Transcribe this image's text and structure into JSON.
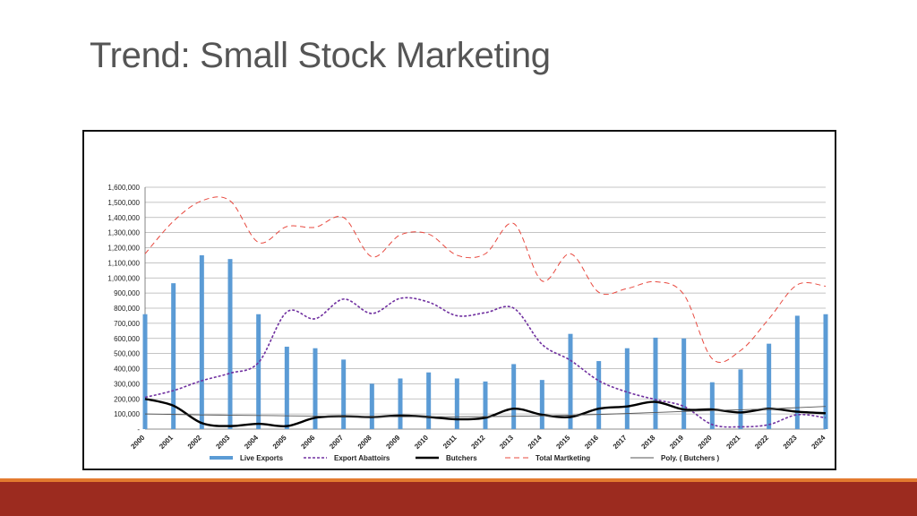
{
  "slide": {
    "title": "Trend: Small Stock Marketing"
  },
  "colors": {
    "footer": "#9c2b1f",
    "accent": "#e37a2f"
  },
  "chart_data": {
    "type": "bar",
    "categories": [
      "2000",
      "2001",
      "2002",
      "2003",
      "2004",
      "2005",
      "2006",
      "2007",
      "2008",
      "2009",
      "2010",
      "2011",
      "2012",
      "2013",
      "2014",
      "2015",
      "2016",
      "2017",
      "2018",
      "2019",
      "2020",
      "2021",
      "2022",
      "2023",
      "2024"
    ],
    "ylim": [
      0,
      1600000
    ],
    "yticks": [
      "-",
      "100,000",
      "200,000",
      "300,000",
      "400,000",
      "500,000",
      "600,000",
      "700,000",
      "800,000",
      "900,000",
      "1,000,000",
      "1,100,000",
      "1,200,000",
      "1,300,000",
      "1,400,000",
      "1,500,000",
      "1,600,000"
    ],
    "grid": true,
    "legend_position": "bottom",
    "series": [
      {
        "name": "Live Exports",
        "kind": "bar",
        "color": "#5b9bd5",
        "values": [
          760000,
          965000,
          1150000,
          1125000,
          760000,
          545000,
          535000,
          460000,
          300000,
          335000,
          375000,
          335000,
          315000,
          430000,
          325000,
          630000,
          450000,
          535000,
          605000,
          600000,
          310000,
          395000,
          565000,
          750000,
          760000
        ]
      },
      {
        "name": "Export Abattoirs",
        "kind": "line",
        "style": "dotted",
        "color": "#7030a0",
        "values": [
          210000,
          255000,
          320000,
          370000,
          440000,
          775000,
          730000,
          860000,
          765000,
          865000,
          840000,
          750000,
          770000,
          800000,
          560000,
          455000,
          320000,
          245000,
          195000,
          150000,
          30000,
          15000,
          30000,
          95000,
          75000
        ]
      },
      {
        "name": "Butchers",
        "kind": "line",
        "style": "solid",
        "color": "#000000",
        "values": [
          200000,
          155000,
          40000,
          20000,
          35000,
          20000,
          75000,
          85000,
          80000,
          90000,
          80000,
          65000,
          75000,
          135000,
          95000,
          80000,
          135000,
          150000,
          180000,
          130000,
          130000,
          110000,
          135000,
          115000,
          105000
        ]
      },
      {
        "name": "Total Martketing",
        "kind": "line",
        "style": "dashed",
        "color": "#e8493f",
        "values": [
          1160000,
          1375000,
          1510000,
          1510000,
          1235000,
          1340000,
          1335000,
          1400000,
          1140000,
          1285000,
          1290000,
          1150000,
          1160000,
          1360000,
          980000,
          1160000,
          905000,
          930000,
          975000,
          890000,
          465000,
          520000,
          730000,
          955000,
          945000
        ]
      },
      {
        "name": "Poly. ( Butchers )",
        "kind": "line",
        "style": "thin",
        "color": "#555555",
        "values": [
          100000,
          97000,
          94000,
          92000,
          90000,
          88000,
          86000,
          84000,
          83000,
          82000,
          82000,
          82000,
          83000,
          85000,
          88000,
          92000,
          97000,
          103000,
          110000,
          117000,
          123000,
          128000,
          134000,
          142000,
          150000
        ]
      }
    ]
  }
}
